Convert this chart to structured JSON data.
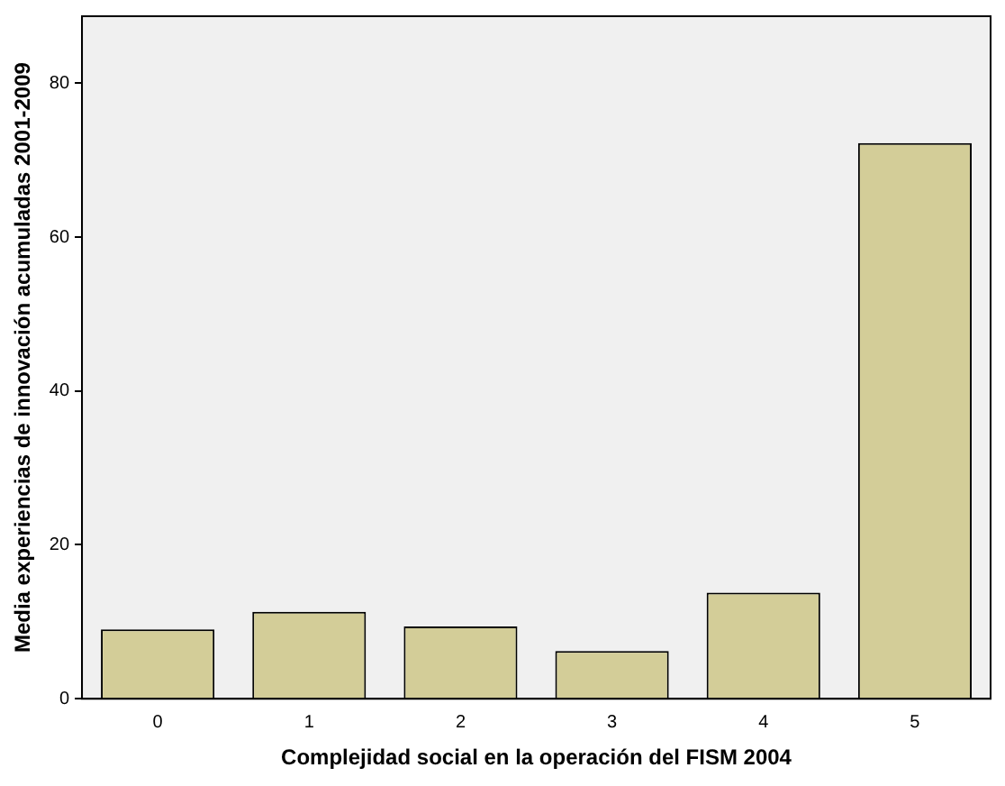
{
  "chart_data": {
    "type": "bar",
    "xlabel": "Complejidad social en la operación del FISM 2004",
    "ylabel": "Media experiencias de innovación acumuladas 2001-2009",
    "categories": [
      "0",
      "1",
      "2",
      "3",
      "4",
      "5"
    ],
    "values": [
      9.0,
      11.3,
      9.4,
      6.2,
      13.8,
      72.2
    ],
    "color": "#d3cd98",
    "ylim": [
      0,
      88.7
    ],
    "yticks": [
      0,
      20,
      40,
      60,
      80
    ],
    "grid": false,
    "legend": false
  }
}
